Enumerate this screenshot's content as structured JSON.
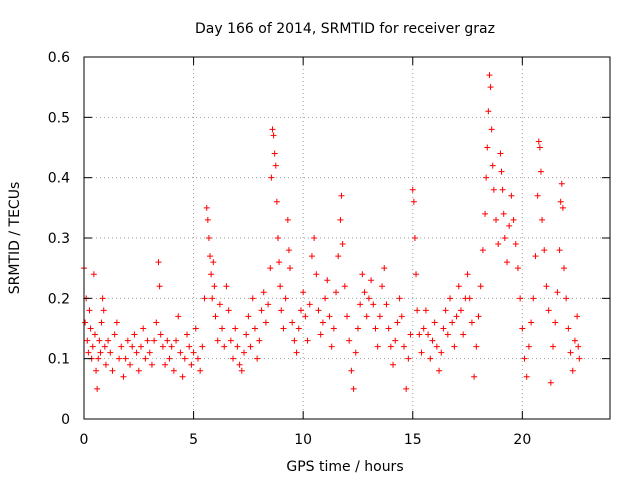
{
  "chart_data": {
    "type": "scatter",
    "title": "Day 166 of 2014, SRMTID for receiver graz",
    "xlabel": "GPS time / hours",
    "ylabel": "SRMTID / TECUs",
    "xlim": [
      0,
      24
    ],
    "ylim": [
      0,
      0.6
    ],
    "xticks": [
      0,
      5,
      10,
      15,
      20
    ],
    "xtick_labels": [
      "0",
      "5",
      "10",
      "15",
      "20"
    ],
    "yticks": [
      0,
      0.1,
      0.2,
      0.3,
      0.4,
      0.5,
      0.6
    ],
    "ytick_labels": [
      "0",
      "0.1",
      "0.2",
      "0.3",
      "0.4",
      "0.5",
      "0.6"
    ],
    "grid": true,
    "marker": "+",
    "color": "#ff0000",
    "series": [
      {
        "name": "SRMTID",
        "points": [
          [
            0.0,
            0.25
          ],
          [
            0.05,
            0.16
          ],
          [
            0.1,
            0.2
          ],
          [
            0.15,
            0.13
          ],
          [
            0.2,
            0.11
          ],
          [
            0.25,
            0.18
          ],
          [
            0.3,
            0.15
          ],
          [
            0.35,
            0.1
          ],
          [
            0.4,
            0.12
          ],
          [
            0.45,
            0.24
          ],
          [
            0.5,
            0.14
          ],
          [
            0.55,
            0.08
          ],
          [
            0.6,
            0.05
          ],
          [
            0.65,
            0.1
          ],
          [
            0.7,
            0.13
          ],
          [
            0.75,
            0.11
          ],
          [
            0.8,
            0.16
          ],
          [
            0.85,
            0.2
          ],
          [
            0.9,
            0.18
          ],
          [
            0.95,
            0.12
          ],
          [
            1.0,
            0.09
          ],
          [
            1.1,
            0.13
          ],
          [
            1.2,
            0.11
          ],
          [
            1.3,
            0.08
          ],
          [
            1.4,
            0.14
          ],
          [
            1.5,
            0.16
          ],
          [
            1.6,
            0.1
          ],
          [
            1.7,
            0.12
          ],
          [
            1.8,
            0.07
          ],
          [
            1.9,
            0.1
          ],
          [
            2.0,
            0.13
          ],
          [
            2.1,
            0.09
          ],
          [
            2.2,
            0.12
          ],
          [
            2.3,
            0.14
          ],
          [
            2.4,
            0.11
          ],
          [
            2.5,
            0.08
          ],
          [
            2.6,
            0.12
          ],
          [
            2.7,
            0.15
          ],
          [
            2.8,
            0.1
          ],
          [
            2.9,
            0.13
          ],
          [
            3.0,
            0.11
          ],
          [
            3.1,
            0.09
          ],
          [
            3.2,
            0.13
          ],
          [
            3.3,
            0.16
          ],
          [
            3.4,
            0.26
          ],
          [
            3.45,
            0.22
          ],
          [
            3.5,
            0.14
          ],
          [
            3.6,
            0.12
          ],
          [
            3.7,
            0.09
          ],
          [
            3.8,
            0.13
          ],
          [
            3.9,
            0.1
          ],
          [
            4.0,
            0.12
          ],
          [
            4.1,
            0.08
          ],
          [
            4.2,
            0.13
          ],
          [
            4.3,
            0.17
          ],
          [
            4.4,
            0.11
          ],
          [
            4.5,
            0.07
          ],
          [
            4.6,
            0.1
          ],
          [
            4.7,
            0.14
          ],
          [
            4.8,
            0.12
          ],
          [
            4.9,
            0.09
          ],
          [
            5.0,
            0.11
          ],
          [
            5.1,
            0.15
          ],
          [
            5.2,
            0.1
          ],
          [
            5.3,
            0.08
          ],
          [
            5.4,
            0.12
          ],
          [
            5.5,
            0.2
          ],
          [
            5.6,
            0.35
          ],
          [
            5.65,
            0.33
          ],
          [
            5.7,
            0.3
          ],
          [
            5.75,
            0.27
          ],
          [
            5.8,
            0.24
          ],
          [
            5.85,
            0.2
          ],
          [
            5.9,
            0.26
          ],
          [
            5.95,
            0.22
          ],
          [
            6.0,
            0.17
          ],
          [
            6.1,
            0.13
          ],
          [
            6.2,
            0.19
          ],
          [
            6.3,
            0.15
          ],
          [
            6.4,
            0.12
          ],
          [
            6.5,
            0.22
          ],
          [
            6.6,
            0.18
          ],
          [
            6.7,
            0.13
          ],
          [
            6.8,
            0.1
          ],
          [
            6.9,
            0.15
          ],
          [
            7.0,
            0.12
          ],
          [
            7.1,
            0.09
          ],
          [
            7.2,
            0.08
          ],
          [
            7.3,
            0.11
          ],
          [
            7.4,
            0.14
          ],
          [
            7.5,
            0.17
          ],
          [
            7.6,
            0.12
          ],
          [
            7.7,
            0.2
          ],
          [
            7.8,
            0.15
          ],
          [
            7.9,
            0.1
          ],
          [
            8.0,
            0.13
          ],
          [
            8.1,
            0.18
          ],
          [
            8.2,
            0.21
          ],
          [
            8.3,
            0.16
          ],
          [
            8.4,
            0.19
          ],
          [
            8.5,
            0.25
          ],
          [
            8.55,
            0.4
          ],
          [
            8.6,
            0.48
          ],
          [
            8.65,
            0.47
          ],
          [
            8.7,
            0.44
          ],
          [
            8.75,
            0.42
          ],
          [
            8.8,
            0.36
          ],
          [
            8.85,
            0.3
          ],
          [
            8.9,
            0.26
          ],
          [
            8.95,
            0.22
          ],
          [
            9.0,
            0.18
          ],
          [
            9.1,
            0.15
          ],
          [
            9.2,
            0.2
          ],
          [
            9.3,
            0.33
          ],
          [
            9.35,
            0.28
          ],
          [
            9.4,
            0.25
          ],
          [
            9.5,
            0.16
          ],
          [
            9.6,
            0.13
          ],
          [
            9.7,
            0.11
          ],
          [
            9.8,
            0.15
          ],
          [
            9.9,
            0.18
          ],
          [
            10.0,
            0.21
          ],
          [
            10.1,
            0.17
          ],
          [
            10.2,
            0.13
          ],
          [
            10.3,
            0.19
          ],
          [
            10.4,
            0.27
          ],
          [
            10.5,
            0.3
          ],
          [
            10.6,
            0.24
          ],
          [
            10.7,
            0.18
          ],
          [
            10.8,
            0.14
          ],
          [
            10.9,
            0.16
          ],
          [
            11.0,
            0.2
          ],
          [
            11.1,
            0.23
          ],
          [
            11.2,
            0.17
          ],
          [
            11.3,
            0.12
          ],
          [
            11.4,
            0.15
          ],
          [
            11.5,
            0.21
          ],
          [
            11.6,
            0.27
          ],
          [
            11.7,
            0.33
          ],
          [
            11.75,
            0.37
          ],
          [
            11.8,
            0.29
          ],
          [
            11.9,
            0.22
          ],
          [
            12.0,
            0.17
          ],
          [
            12.1,
            0.13
          ],
          [
            12.2,
            0.08
          ],
          [
            12.3,
            0.05
          ],
          [
            12.4,
            0.11
          ],
          [
            12.5,
            0.15
          ],
          [
            12.6,
            0.19
          ],
          [
            12.7,
            0.24
          ],
          [
            12.8,
            0.21
          ],
          [
            12.9,
            0.17
          ],
          [
            13.0,
            0.2
          ],
          [
            13.1,
            0.23
          ],
          [
            13.2,
            0.19
          ],
          [
            13.3,
            0.15
          ],
          [
            13.4,
            0.12
          ],
          [
            13.5,
            0.17
          ],
          [
            13.6,
            0.22
          ],
          [
            13.7,
            0.25
          ],
          [
            13.8,
            0.19
          ],
          [
            13.9,
            0.15
          ],
          [
            14.0,
            0.12
          ],
          [
            14.1,
            0.09
          ],
          [
            14.2,
            0.13
          ],
          [
            14.3,
            0.16
          ],
          [
            14.4,
            0.2
          ],
          [
            14.5,
            0.17
          ],
          [
            14.6,
            0.12
          ],
          [
            14.7,
            0.05
          ],
          [
            14.8,
            0.1
          ],
          [
            14.9,
            0.14
          ],
          [
            15.0,
            0.38
          ],
          [
            15.05,
            0.36
          ],
          [
            15.1,
            0.3
          ],
          [
            15.15,
            0.24
          ],
          [
            15.2,
            0.18
          ],
          [
            15.3,
            0.14
          ],
          [
            15.4,
            0.11
          ],
          [
            15.5,
            0.15
          ],
          [
            15.6,
            0.18
          ],
          [
            15.7,
            0.14
          ],
          [
            15.8,
            0.1
          ],
          [
            15.9,
            0.13
          ],
          [
            16.0,
            0.16
          ],
          [
            16.1,
            0.12
          ],
          [
            16.2,
            0.08
          ],
          [
            16.3,
            0.11
          ],
          [
            16.4,
            0.15
          ],
          [
            16.5,
            0.18
          ],
          [
            16.6,
            0.14
          ],
          [
            16.7,
            0.2
          ],
          [
            16.8,
            0.16
          ],
          [
            16.9,
            0.12
          ],
          [
            17.0,
            0.17
          ],
          [
            17.1,
            0.22
          ],
          [
            17.2,
            0.18
          ],
          [
            17.3,
            0.14
          ],
          [
            17.4,
            0.2
          ],
          [
            17.5,
            0.24
          ],
          [
            17.6,
            0.2
          ],
          [
            17.7,
            0.16
          ],
          [
            17.8,
            0.07
          ],
          [
            17.9,
            0.12
          ],
          [
            18.0,
            0.17
          ],
          [
            18.1,
            0.22
          ],
          [
            18.2,
            0.28
          ],
          [
            18.3,
            0.34
          ],
          [
            18.35,
            0.4
          ],
          [
            18.4,
            0.45
          ],
          [
            18.45,
            0.51
          ],
          [
            18.5,
            0.57
          ],
          [
            18.55,
            0.55
          ],
          [
            18.6,
            0.48
          ],
          [
            18.65,
            0.42
          ],
          [
            18.7,
            0.38
          ],
          [
            18.8,
            0.33
          ],
          [
            18.9,
            0.29
          ],
          [
            19.0,
            0.44
          ],
          [
            19.05,
            0.41
          ],
          [
            19.1,
            0.38
          ],
          [
            19.15,
            0.34
          ],
          [
            19.2,
            0.3
          ],
          [
            19.3,
            0.26
          ],
          [
            19.4,
            0.32
          ],
          [
            19.5,
            0.37
          ],
          [
            19.6,
            0.33
          ],
          [
            19.7,
            0.29
          ],
          [
            19.8,
            0.25
          ],
          [
            19.9,
            0.2
          ],
          [
            20.0,
            0.15
          ],
          [
            20.1,
            0.1
          ],
          [
            20.2,
            0.07
          ],
          [
            20.3,
            0.12
          ],
          [
            20.4,
            0.16
          ],
          [
            20.5,
            0.2
          ],
          [
            20.6,
            0.27
          ],
          [
            20.7,
            0.37
          ],
          [
            20.75,
            0.46
          ],
          [
            20.8,
            0.45
          ],
          [
            20.85,
            0.41
          ],
          [
            20.9,
            0.33
          ],
          [
            21.0,
            0.28
          ],
          [
            21.1,
            0.22
          ],
          [
            21.2,
            0.18
          ],
          [
            21.3,
            0.06
          ],
          [
            21.4,
            0.12
          ],
          [
            21.5,
            0.16
          ],
          [
            21.6,
            0.21
          ],
          [
            21.7,
            0.28
          ],
          [
            21.75,
            0.36
          ],
          [
            21.8,
            0.39
          ],
          [
            21.85,
            0.35
          ],
          [
            21.9,
            0.25
          ],
          [
            22.0,
            0.2
          ],
          [
            22.1,
            0.15
          ],
          [
            22.2,
            0.11
          ],
          [
            22.3,
            0.08
          ],
          [
            22.4,
            0.13
          ],
          [
            22.5,
            0.17
          ],
          [
            22.55,
            0.12
          ],
          [
            22.6,
            0.1
          ]
        ]
      }
    ]
  }
}
